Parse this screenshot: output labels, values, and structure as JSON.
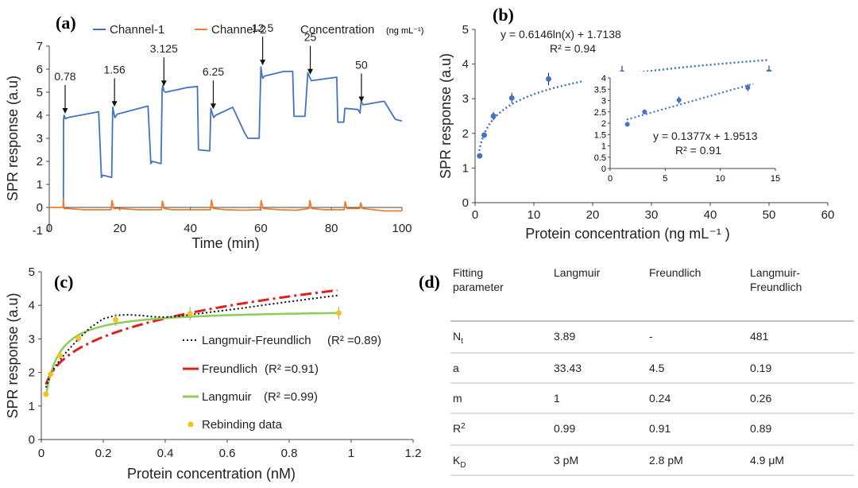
{
  "chart_data": [
    {
      "panel": "(a)",
      "type": "line",
      "xlabel": "Time (min)",
      "ylabel": "SPR response (a.u)",
      "xlim": [
        0,
        100
      ],
      "ylim": [
        -1,
        7
      ],
      "xticks": [
        "0",
        "20",
        "40",
        "60",
        "80",
        "100"
      ],
      "yticks": [
        "-1",
        "0",
        "1",
        "2",
        "3",
        "4",
        "5",
        "6",
        "7"
      ],
      "legend": [
        "Channel-1",
        "Channel-2"
      ],
      "legend_title": "Concentration",
      "legend_unit": "(ng mL⁻¹)",
      "colors": {
        "channel1": "#4472c4",
        "channel2": "#ed7d31"
      },
      "series": [
        {
          "name": "Channel-1",
          "x": [
            4.0,
            4.05,
            4.2,
            4.6,
            5.3,
            14.0,
            14.8,
            15.2,
            17.7,
            18.0,
            18.3,
            18.6,
            19.3,
            28.0,
            28.8,
            29.2,
            31.7,
            32.0,
            32.2,
            32.5,
            33.0,
            39.0,
            42.0,
            42.3,
            45.5,
            45.8,
            46.2,
            46.6,
            47.2,
            52.0,
            52.3,
            55.5,
            56.3,
            59.5,
            60.0,
            60.2,
            60.5,
            61.0,
            66.5,
            69.0,
            69.4,
            72.5,
            73.3,
            73.7,
            74.3,
            81.5,
            81.8,
            83.5,
            83.8,
            87.5,
            88.1,
            88.4,
            89.0,
            94.5,
            95.0,
            98.0,
            98.6,
            100.0
          ],
          "y": [
            0,
            3.8,
            4.0,
            3.85,
            3.9,
            4.15,
            1.3,
            1.4,
            1.3,
            4.35,
            4.1,
            3.9,
            4.05,
            4.4,
            1.9,
            2.0,
            1.9,
            5.1,
            5.3,
            5.05,
            5.0,
            5.2,
            5.25,
            2.5,
            2.45,
            4.3,
            4.1,
            3.9,
            4.0,
            4.35,
            4.25,
            3.2,
            3.0,
            3.0,
            6.1,
            5.85,
            5.6,
            5.7,
            5.9,
            5.9,
            3.95,
            3.95,
            5.85,
            5.7,
            5.5,
            5.65,
            3.7,
            3.7,
            4.3,
            4.25,
            4.1,
            4.6,
            4.45,
            4.6,
            4.6,
            3.85,
            3.8,
            3.75
          ]
        },
        {
          "name": "Channel-2",
          "x": [
            0,
            3.9,
            4.0,
            4.2,
            5,
            10,
            17.5,
            17.8,
            18.3,
            20,
            25,
            31.8,
            32.1,
            32.6,
            35,
            40,
            45.7,
            46.0,
            46.5,
            50,
            55,
            59.8,
            60.1,
            60.6,
            65,
            70,
            73.6,
            73.9,
            74.4,
            78,
            83.6,
            83.9,
            84.4,
            88,
            88.3,
            88.8,
            92,
            95,
            100
          ],
          "y": [
            0,
            0,
            0.35,
            -0.05,
            -0.05,
            -0.1,
            -0.1,
            0.3,
            -0.05,
            -0.05,
            -0.1,
            -0.1,
            0.28,
            -0.05,
            -0.1,
            -0.1,
            -0.1,
            0.32,
            -0.05,
            -0.1,
            -0.12,
            -0.1,
            0.3,
            -0.05,
            -0.1,
            -0.12,
            -0.05,
            0.3,
            -0.05,
            -0.1,
            -0.1,
            0.25,
            -0.05,
            -0.05,
            0.2,
            -0.05,
            -0.1,
            -0.15,
            -0.15
          ]
        }
      ],
      "annotations": [
        {
          "label": "0.78",
          "x": 4.5,
          "y": 4.0
        },
        {
          "label": "1.56",
          "x": 18.5,
          "y": 4.3
        },
        {
          "label": "3.125",
          "x": 32.5,
          "y": 5.2
        },
        {
          "label": "6.25",
          "x": 46.5,
          "y": 4.2
        },
        {
          "label": "12.5",
          "x": 60.5,
          "y": 6.1
        },
        {
          "label": "25",
          "x": 74,
          "y": 5.7
        },
        {
          "label": "50",
          "x": 88.5,
          "y": 4.5
        }
      ]
    },
    {
      "panel": "(b)",
      "type": "scatter",
      "xlabel": "Protein concentration (ng mL⁻¹ )",
      "ylabel": "SPR response (a.u)",
      "xlim": [
        0,
        60
      ],
      "ylim": [
        0,
        5
      ],
      "xticks": [
        "0",
        "10",
        "20",
        "30",
        "40",
        "50",
        "60"
      ],
      "yticks": [
        "0",
        "1",
        "2",
        "3",
        "4",
        "5"
      ],
      "points": {
        "x": [
          0.78,
          1.56,
          3.125,
          6.25,
          12.5,
          25,
          50
        ],
        "y": [
          1.35,
          1.95,
          2.5,
          3.02,
          3.57,
          3.75,
          3.77
        ],
        "err": [
          0.05,
          0.08,
          0.12,
          0.15,
          0.18,
          0.2,
          0.18
        ]
      },
      "fit": {
        "a": 0.6146,
        "b": 1.7138
      },
      "equation": "y = 0.6146ln(x) + 1.7138",
      "r2": "R² = 0.94",
      "color": "#4472c4",
      "inset": {
        "xlim": [
          0,
          15
        ],
        "ylim": [
          0,
          4
        ],
        "xticks": [
          "0",
          "5",
          "10",
          "15"
        ],
        "yticks": [
          "0",
          "0.5",
          "1",
          "1.5",
          "2",
          "2.5",
          "3",
          "3.5",
          "4"
        ],
        "points": {
          "x": [
            1.56,
            3.125,
            6.25,
            12.5
          ],
          "y": [
            1.95,
            2.5,
            3.02,
            3.57
          ],
          "err": [
            0.05,
            0.1,
            0.15,
            0.15
          ]
        },
        "fit": {
          "m": 0.1377,
          "c": 1.9513
        },
        "equation": "y = 0.1377x + 1.9513",
        "r2": "R² = 0.91"
      }
    },
    {
      "panel": "(c)",
      "type": "line",
      "xlabel": "Protein concentration (nM)",
      "ylabel": "SPR response (a.u)",
      "xlim": [
        0,
        1.2
      ],
      "ylim": [
        0,
        5
      ],
      "xticks": [
        "0",
        "0.2",
        "0.4",
        "0.6",
        "0.8",
        "1",
        "1.2"
      ],
      "yticks": [
        "0",
        "1",
        "2",
        "3",
        "4",
        "5"
      ],
      "legend_labels": [
        "Langmuir-Freundlich",
        "Freundlich",
        "Langmuir",
        "Rebinding data"
      ],
      "legend_r2": [
        "(R² =0.89)",
        "(R² =0.91)",
        "(R² =0.99)",
        ""
      ],
      "rebinding": {
        "x": [
          0.015,
          0.03,
          0.06,
          0.12,
          0.24,
          0.48,
          0.96
        ],
        "y": [
          1.35,
          1.95,
          2.5,
          3.02,
          3.57,
          3.75,
          3.77
        ],
        "err": [
          0.05,
          0.08,
          0.1,
          0.12,
          0.18,
          0.2,
          0.18
        ]
      },
      "models": {
        "langmuir": {
          "Nt": 3.89,
          "a": 33.43
        },
        "freundlich": {
          "a": 4.5,
          "m": 0.24
        },
        "langmuir_freundlich_curve": {
          "x": [
            0.015,
            0.03,
            0.05,
            0.08,
            0.12,
            0.16,
            0.2,
            0.24,
            0.28,
            0.32,
            0.36,
            0.4,
            0.44,
            0.48,
            0.55,
            0.65,
            0.75,
            0.85,
            0.96
          ],
          "y": [
            1.55,
            1.95,
            2.25,
            2.6,
            3.0,
            3.35,
            3.6,
            3.7,
            3.72,
            3.7,
            3.66,
            3.65,
            3.67,
            3.72,
            3.8,
            3.92,
            4.05,
            4.17,
            4.3
          ]
        }
      },
      "colors": {
        "langmuir": "#8dcd5a",
        "freundlich": "#e02020",
        "lf": "#111111",
        "rebinding": "#f5c31a"
      }
    }
  ],
  "labels": {
    "a": "(a)",
    "b": "(b)",
    "c": "(c)",
    "d": "(d)"
  },
  "table": {
    "headers": [
      [
        "Fitting",
        "parameter"
      ],
      [
        "Langmuir"
      ],
      [
        "Freundlich"
      ],
      [
        "Langmuir-",
        "Freundlich"
      ]
    ],
    "rows": [
      {
        "param": "N",
        "sub": "t",
        "sup": "",
        "values": [
          "3.89",
          "-",
          "481"
        ]
      },
      {
        "param": "a",
        "sub": "",
        "sup": "",
        "values": [
          "33.43",
          "4.5",
          "0.19"
        ]
      },
      {
        "param": "m",
        "sub": "",
        "sup": "",
        "values": [
          "1",
          "0.24",
          "0.26"
        ]
      },
      {
        "param": "R",
        "sub": "",
        "sup": "2",
        "values": [
          "0.99",
          "0.91",
          "0.89"
        ]
      },
      {
        "param": "K",
        "sub": "D",
        "sup": "",
        "values": [
          "3 pM",
          "2.8 pM",
          "4.9 μM"
        ]
      }
    ]
  }
}
